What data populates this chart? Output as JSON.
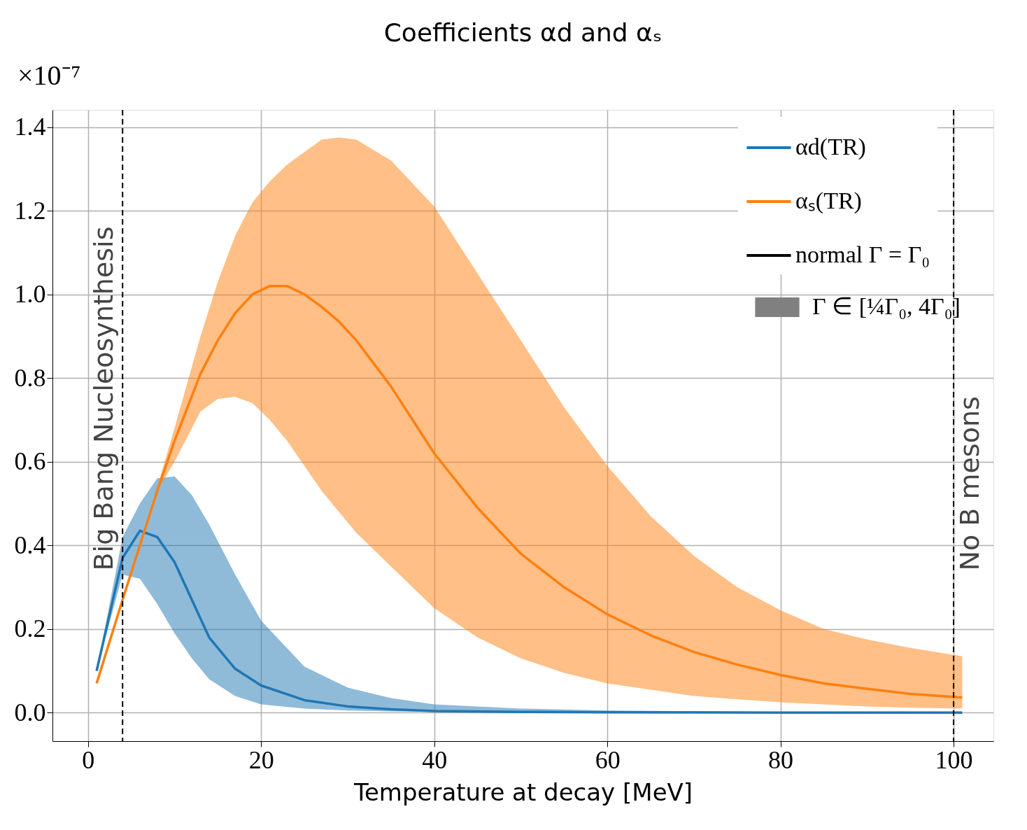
{
  "chart_data": {
    "type": "line",
    "title": "Coefficients αd and αₛ",
    "xlabel": "Temperature at decay [MeV]",
    "ylabel": "×10⁻⁷",
    "xlim": [
      -4.1,
      104.6
    ],
    "ylim": [
      -0.068,
      1.441
    ],
    "xticks": [
      0,
      20,
      40,
      60,
      80,
      100
    ],
    "yticks": [
      {
        "value": 0,
        "label": "0.0"
      },
      {
        "value": 0.2,
        "label": "0.2"
      },
      {
        "value": 0.4,
        "label": "0.4"
      },
      {
        "value": 0.6,
        "label": "0.6"
      },
      {
        "value": 0.8,
        "label": "0.8"
      },
      {
        "value": 1.0,
        "label": "1.0"
      },
      {
        "value": 1.2,
        "label": "1.2"
      },
      {
        "value": 1.4,
        "label": "1.4"
      }
    ],
    "grid": true,
    "legend": "top right",
    "series": [
      {
        "name": "αd(TR)",
        "color": "#1f77b4",
        "x": [
          1,
          4,
          6,
          8,
          10,
          12,
          14,
          17,
          20,
          25,
          30,
          35,
          40,
          50,
          60,
          80,
          101
        ],
        "values": [
          0.1,
          0.37,
          0.435,
          0.42,
          0.36,
          0.27,
          0.18,
          0.105,
          0.065,
          0.03,
          0.015,
          0.008,
          0.004,
          0.002,
          0.001,
          0,
          0
        ],
        "lower": [
          0.1,
          0.33,
          0.32,
          0.26,
          0.19,
          0.13,
          0.08,
          0.04,
          0.02,
          0.01,
          0.005,
          0.003,
          0.002,
          0.001,
          0,
          0,
          0
        ],
        "upper": [
          0.1,
          0.42,
          0.5,
          0.56,
          0.565,
          0.52,
          0.45,
          0.33,
          0.22,
          0.11,
          0.06,
          0.035,
          0.02,
          0.01,
          0.005,
          0.002,
          0
        ]
      },
      {
        "name": "αₛ(TR)",
        "color": "#ff7f0e",
        "x": [
          1,
          4,
          6,
          8,
          10,
          13,
          15,
          17,
          19,
          21,
          23,
          25,
          27,
          29,
          31,
          35,
          40,
          45,
          50,
          55,
          60,
          65,
          70,
          75,
          80,
          85,
          90,
          95,
          101
        ],
        "values": [
          0.07,
          0.27,
          0.4,
          0.53,
          0.65,
          0.81,
          0.89,
          0.955,
          1.0,
          1.02,
          1.02,
          1.0,
          0.97,
          0.935,
          0.89,
          0.78,
          0.62,
          0.49,
          0.38,
          0.3,
          0.235,
          0.185,
          0.145,
          0.115,
          0.09,
          0.07,
          0.057,
          0.045,
          0.036
        ],
        "lower": [
          0.07,
          0.27,
          0.4,
          0.53,
          0.6,
          0.72,
          0.75,
          0.755,
          0.74,
          0.7,
          0.65,
          0.59,
          0.53,
          0.48,
          0.43,
          0.35,
          0.25,
          0.18,
          0.13,
          0.095,
          0.07,
          0.055,
          0.04,
          0.032,
          0.025,
          0.02,
          0.015,
          0.012,
          0.01
        ],
        "upper": [
          0.07,
          0.27,
          0.4,
          0.54,
          0.68,
          0.9,
          1.03,
          1.14,
          1.22,
          1.27,
          1.31,
          1.34,
          1.37,
          1.375,
          1.37,
          1.32,
          1.21,
          1.05,
          0.89,
          0.73,
          0.59,
          0.47,
          0.375,
          0.3,
          0.245,
          0.2,
          0.175,
          0.155,
          0.135
        ]
      }
    ],
    "ref_lines": [
      {
        "axis": "x",
        "value": 4,
        "label": "Big Bang Nucleosynthesis",
        "color": "#000000",
        "line_style": "dashed"
      },
      {
        "axis": "x",
        "value": 100,
        "label": "No B mesons",
        "color": "#000000",
        "line_style": "dashed"
      }
    ],
    "annotations": [
      "normal Γ = Γ₀",
      "Γ ∈ [¼Γ₀, 4Γ₀]"
    ]
  }
}
